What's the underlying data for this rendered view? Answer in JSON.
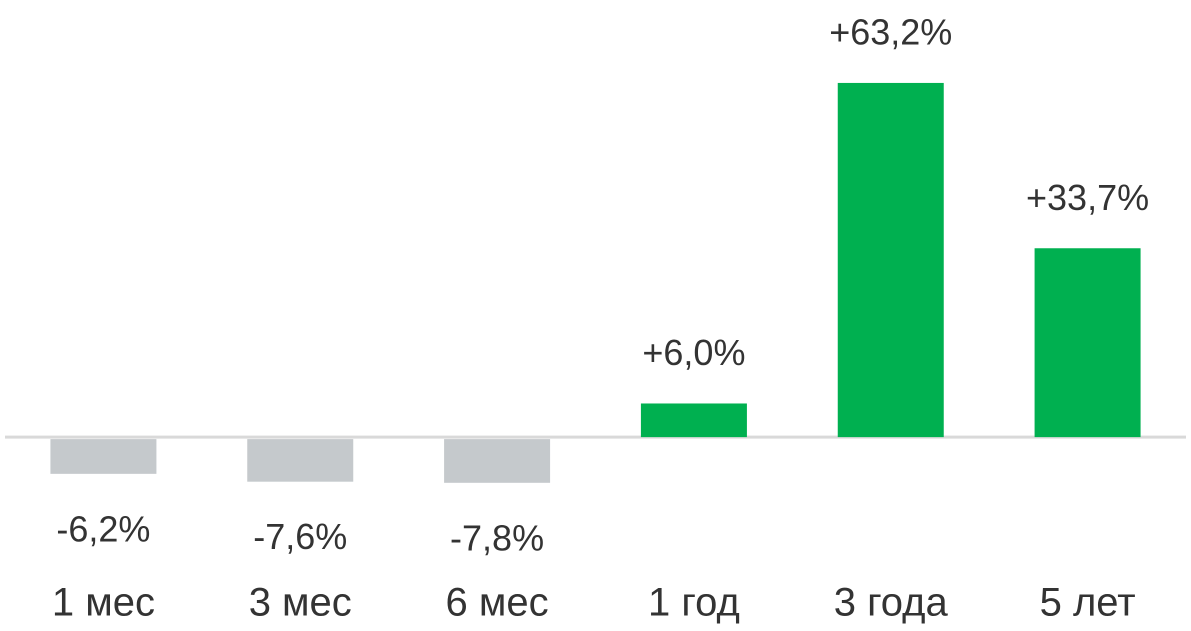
{
  "chart_data": {
    "type": "bar",
    "categories": [
      "1 мес",
      "3 мес",
      "6 мес",
      "1 год",
      "3 года",
      "5 лет"
    ],
    "values": [
      -6.2,
      -7.6,
      -7.8,
      6.0,
      63.2,
      33.7
    ],
    "value_labels": [
      "-6,2%",
      "-7,6%",
      "-7,8%",
      "+6,0%",
      "+63,2%",
      "+33,7%"
    ],
    "colors": [
      "#c5c9cc",
      "#c5c9cc",
      "#c5c9cc",
      "#00b050",
      "#00b050",
      "#00b050"
    ],
    "ylim": [
      -34.6,
      78
    ]
  }
}
